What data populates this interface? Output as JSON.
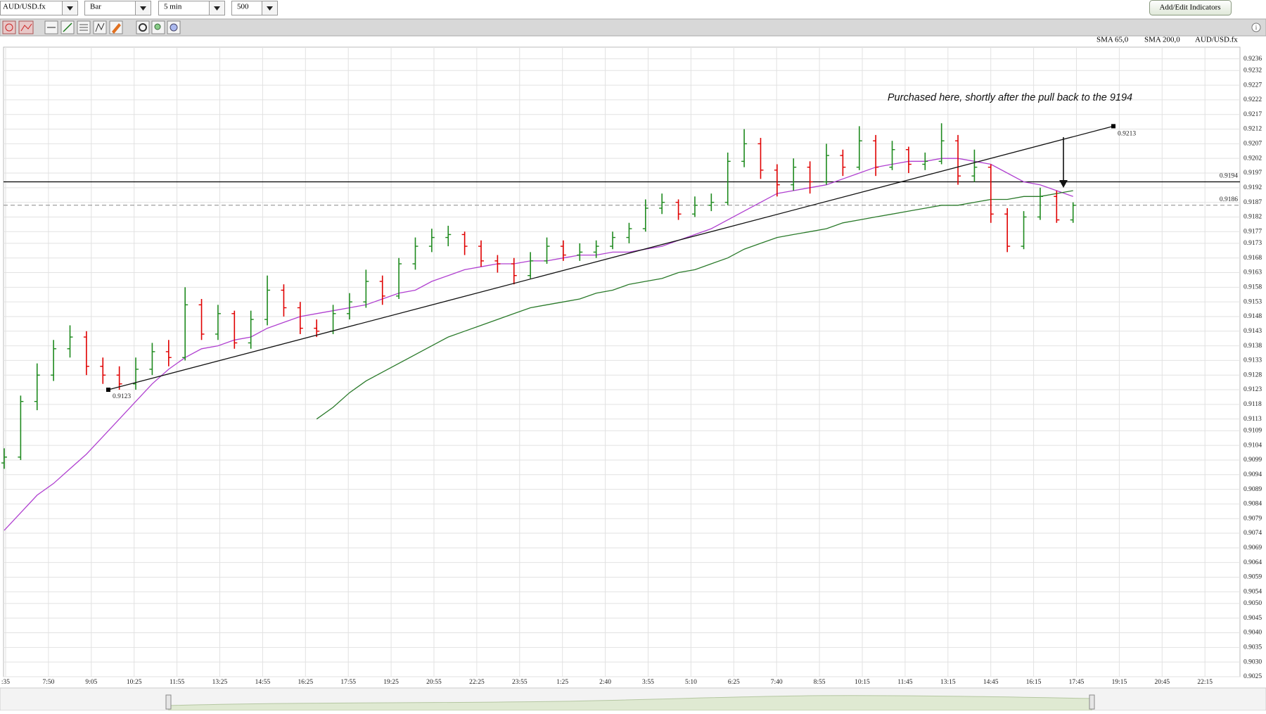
{
  "toolbar": {
    "symbol": "AUD/USD.fx",
    "chart_type": "Bar",
    "interval": "5 min",
    "bars": "500",
    "button": "Add/Edit Indicators"
  },
  "chart_data": {
    "type": "ohlc",
    "symbol_label": "AUD/USD.fx",
    "up_color": "#1e8a1e",
    "down_color": "#e00000",
    "ylim": [
      0.9025,
      0.924
    ],
    "yticks": [
      0.9236,
      0.9232,
      0.9227,
      0.9222,
      0.9217,
      0.9212,
      0.9207,
      0.9202,
      0.9197,
      0.9192,
      0.9187,
      0.9182,
      0.9177,
      0.9173,
      0.9168,
      0.9163,
      0.9158,
      0.9153,
      0.9148,
      0.9143,
      0.9138,
      0.9133,
      0.9128,
      0.9123,
      0.9118,
      0.9113,
      0.9109,
      0.9104,
      0.9099,
      0.9094,
      0.9089,
      0.9084,
      0.9079,
      0.9074,
      0.9069,
      0.9064,
      0.9059,
      0.9054,
      {
        "value": 0.905,
        "label": "0.9050"
      },
      0.9045,
      {
        "value": 0.904,
        "label": "0.9040"
      },
      0.9035,
      {
        "value": 0.903,
        "label": "0.9030"
      },
      0.9025
    ],
    "grid": true,
    "xtick_labels": [
      ":35",
      "7:50",
      "9:05",
      "10:25",
      "11:55",
      "13:25",
      "14:55",
      "16:25",
      "17:55",
      "19:25",
      "20:55",
      "22:25",
      "23:55",
      "1:25",
      "2:40",
      "3:55",
      "5:10",
      "6:25",
      "7:40",
      "8:55",
      "10:15",
      "11:45",
      "13:15",
      "14:45",
      "16:15",
      "17:45",
      "19:15",
      "20:45",
      "22:15"
    ],
    "bars": [
      [
        0.9098,
        0.9103,
        0.9096,
        0.91
      ],
      [
        0.91,
        0.9121,
        0.9099,
        0.9119
      ],
      [
        0.9119,
        0.9132,
        0.9116,
        0.9128
      ],
      [
        0.9128,
        0.914,
        0.9126,
        0.9137
      ],
      [
        0.9137,
        0.9145,
        0.9134,
        0.9141
      ],
      [
        0.9141,
        0.9143,
        0.9128,
        0.9131
      ],
      [
        0.9131,
        0.9134,
        0.9125,
        0.9128
      ],
      [
        0.9128,
        0.9131,
        0.9123,
        0.9125
      ],
      [
        0.9125,
        0.9134,
        0.9123,
        0.913
      ],
      [
        0.913,
        0.9139,
        0.9128,
        0.9136
      ],
      [
        0.9136,
        0.914,
        0.9131,
        0.9134
      ],
      [
        0.9134,
        0.9158,
        0.9133,
        0.9152
      ],
      [
        0.9152,
        0.9154,
        0.914,
        0.9142
      ],
      [
        0.9142,
        0.9152,
        0.914,
        0.9149
      ],
      [
        0.9149,
        0.915,
        0.9137,
        0.9139
      ],
      [
        0.9139,
        0.915,
        0.9137,
        0.9147
      ],
      [
        0.9147,
        0.9162,
        0.9145,
        0.9157
      ],
      [
        0.9157,
        0.9159,
        0.9148,
        0.9151
      ],
      [
        0.9151,
        0.9153,
        0.9142,
        0.9144
      ],
      [
        0.9144,
        0.9147,
        0.9141,
        0.9143
      ],
      [
        0.9143,
        0.9152,
        0.9142,
        0.9149
      ],
      [
        0.9149,
        0.9156,
        0.9147,
        0.9153
      ],
      [
        0.9153,
        0.9164,
        0.9151,
        0.916
      ],
      [
        0.916,
        0.9162,
        0.9152,
        0.9155
      ],
      [
        0.9155,
        0.9168,
        0.9154,
        0.9166
      ],
      [
        0.9166,
        0.9175,
        0.9164,
        0.9172
      ],
      [
        0.9172,
        0.9178,
        0.917,
        0.9175
      ],
      [
        0.9175,
        0.9179,
        0.9172,
        0.9176
      ],
      [
        0.9176,
        0.9177,
        0.9169,
        0.9172
      ],
      [
        0.9172,
        0.9174,
        0.9165,
        0.9167
      ],
      [
        0.9167,
        0.9169,
        0.9163,
        0.9166
      ],
      [
        0.9166,
        0.9168,
        0.9159,
        0.9162
      ],
      [
        0.9162,
        0.917,
        0.9161,
        0.9167
      ],
      [
        0.9167,
        0.9175,
        0.9166,
        0.9172
      ],
      [
        0.9172,
        0.9174,
        0.9167,
        0.9169
      ],
      [
        0.9169,
        0.9173,
        0.9167,
        0.917
      ],
      [
        0.917,
        0.9174,
        0.9168,
        0.9172
      ],
      [
        0.9172,
        0.9177,
        0.9171,
        0.9175
      ],
      [
        0.9175,
        0.918,
        0.9173,
        0.9178
      ],
      [
        0.9178,
        0.9188,
        0.9177,
        0.9185
      ],
      [
        0.9185,
        0.919,
        0.9183,
        0.9187
      ],
      [
        0.9187,
        0.9188,
        0.9181,
        0.9183
      ],
      [
        0.9183,
        0.9189,
        0.9182,
        0.9186
      ],
      [
        0.9186,
        0.919,
        0.9184,
        0.9187
      ],
      [
        0.9187,
        0.9204,
        0.9186,
        0.9201
      ],
      [
        0.9201,
        0.9212,
        0.9199,
        0.9207
      ],
      [
        0.9207,
        0.9209,
        0.9195,
        0.9198
      ],
      [
        0.9198,
        0.92,
        0.9189,
        0.9193
      ],
      [
        0.9193,
        0.9202,
        0.9191,
        0.9199
      ],
      [
        0.9199,
        0.9201,
        0.919,
        0.9194
      ],
      [
        0.9194,
        0.9207,
        0.9193,
        0.9203
      ],
      [
        0.9203,
        0.9205,
        0.9196,
        0.9199
      ],
      [
        0.9199,
        0.9213,
        0.9198,
        0.9208
      ],
      [
        0.9208,
        0.921,
        0.9196,
        0.9199
      ],
      [
        0.9199,
        0.9208,
        0.9198,
        0.9205
      ],
      [
        0.9205,
        0.9206,
        0.9197,
        0.92
      ],
      [
        0.92,
        0.9204,
        0.9198,
        0.9201
      ],
      [
        0.9201,
        0.9214,
        0.92,
        0.9208
      ],
      [
        0.9208,
        0.921,
        0.9193,
        0.9196
      ],
      [
        0.9196,
        0.9205,
        0.9194,
        0.9199
      ],
      [
        0.9199,
        0.92,
        0.918,
        0.9183
      ],
      [
        0.9183,
        0.9185,
        0.917,
        0.9172
      ],
      [
        0.9172,
        0.9184,
        0.9171,
        0.9182
      ],
      [
        0.9182,
        0.9192,
        0.9181,
        0.9189
      ],
      [
        0.9189,
        0.9191,
        0.918,
        0.9181
      ],
      [
        0.9181,
        0.9187,
        0.918,
        0.9186
      ]
    ],
    "series": [
      {
        "name": "SMA 65,0",
        "color": "#b040d0",
        "values": [
          0.9075,
          0.9081,
          0.9087,
          0.9091,
          0.9096,
          0.9101,
          0.9107,
          0.9113,
          0.9119,
          0.9125,
          0.913,
          0.9134,
          0.9137,
          0.9138,
          0.914,
          0.9141,
          0.9144,
          0.9146,
          0.9148,
          0.9149,
          0.915,
          0.9151,
          0.9152,
          0.9154,
          0.9156,
          0.9157,
          0.916,
          0.9162,
          0.9164,
          0.9165,
          0.9166,
          0.9166,
          0.9167,
          0.9167,
          0.9168,
          0.9169,
          0.9169,
          0.917,
          0.917,
          0.9171,
          0.9172,
          0.9174,
          0.9176,
          0.9178,
          0.9181,
          0.9184,
          0.9187,
          0.919,
          0.9191,
          0.9192,
          0.9193,
          0.9195,
          0.9197,
          0.9199,
          0.92,
          0.9201,
          0.9201,
          0.9202,
          0.9202,
          0.9201,
          0.92,
          0.9197,
          0.9194,
          0.9193,
          0.9191,
          0.9189
        ]
      },
      {
        "name": "SMA 200,0",
        "color": "#2a7a2a",
        "values": [
          null,
          null,
          null,
          null,
          null,
          null,
          null,
          null,
          null,
          null,
          null,
          null,
          null,
          null,
          null,
          null,
          null,
          null,
          null,
          0.9113,
          0.9117,
          0.9122,
          0.9126,
          0.9129,
          0.9132,
          0.9135,
          0.9138,
          0.9141,
          0.9143,
          0.9145,
          0.9147,
          0.9149,
          0.9151,
          0.9152,
          0.9153,
          0.9154,
          0.9156,
          0.9157,
          0.9159,
          0.916,
          0.9161,
          0.9163,
          0.9164,
          0.9166,
          0.9168,
          0.9171,
          0.9173,
          0.9175,
          0.9176,
          0.9177,
          0.9178,
          0.918,
          0.9181,
          0.9182,
          0.9183,
          0.9184,
          0.9185,
          0.9186,
          0.9186,
          0.9187,
          0.9188,
          0.9188,
          0.9189,
          0.9189,
          0.919,
          0.9191
        ]
      }
    ],
    "levels": [
      {
        "value": 0.9194,
        "dashed": false,
        "line_color": "#000000",
        "label_color": "#000000"
      },
      {
        "value": 0.9186,
        "dashed": true,
        "line_color": "#888888",
        "label_color": "#dd0000"
      }
    ],
    "trendline": {
      "from": 0.9123,
      "to": 0.9213,
      "label_color": "#2255cc"
    },
    "note": "Purchased here, shortly after the pull back to the 9194"
  }
}
